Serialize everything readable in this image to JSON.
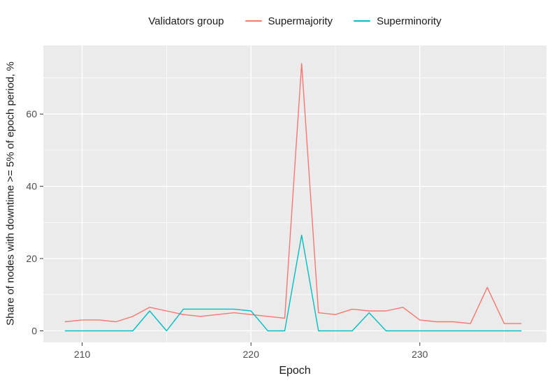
{
  "figure": {
    "legend_title": "Validators group",
    "xlabel": "Epoch",
    "ylabel": "Share of nodes with downtime >= 5% of epoch period, %"
  },
  "colors": {
    "panel_bg": "#EBEBEB",
    "grid": "#FFFFFF",
    "tick": "#333333",
    "tick_label": "#4D4D4D",
    "supermajority": "#F8766D",
    "superminority": "#00BFC4"
  },
  "chart_data": {
    "type": "line",
    "title": "",
    "xlabel": "Epoch",
    "ylabel": "Share of nodes with downtime >= 5% of epoch period, %",
    "legend_title": "Validators group",
    "legend_position": "top",
    "grid": true,
    "x": [
      209,
      210,
      211,
      212,
      213,
      214,
      215,
      216,
      217,
      218,
      219,
      220,
      221,
      222,
      223,
      224,
      225,
      226,
      227,
      228,
      229,
      230,
      231,
      232,
      233,
      234,
      235,
      236
    ],
    "series": [
      {
        "name": "Supermajority",
        "color": "#F8766D",
        "values": [
          2.5,
          3,
          3,
          2.5,
          4,
          6.5,
          5.5,
          4.5,
          4,
          4.5,
          5,
          4.5,
          4,
          3.5,
          74,
          5,
          4.5,
          6,
          5.5,
          5.5,
          6.5,
          3,
          2.5,
          2.5,
          2,
          12,
          2,
          2
        ]
      },
      {
        "name": "Superminority",
        "color": "#00BFC4",
        "values": [
          0,
          0,
          0,
          0,
          0,
          5.5,
          0,
          6,
          6,
          6,
          6,
          5.5,
          0,
          0,
          26.5,
          0,
          0,
          0,
          5,
          0,
          0,
          0,
          0,
          0,
          0,
          0,
          0,
          0
        ]
      }
    ],
    "xlim": [
      207.7,
      237.5
    ],
    "ylim": [
      -3.2,
      79
    ],
    "x_ticks": [
      210,
      220,
      230
    ],
    "y_ticks": [
      0,
      20,
      40,
      60
    ],
    "x_minor_ticks": [
      215,
      225,
      235
    ],
    "y_minor_ticks": [
      10,
      30,
      50,
      70
    ]
  }
}
